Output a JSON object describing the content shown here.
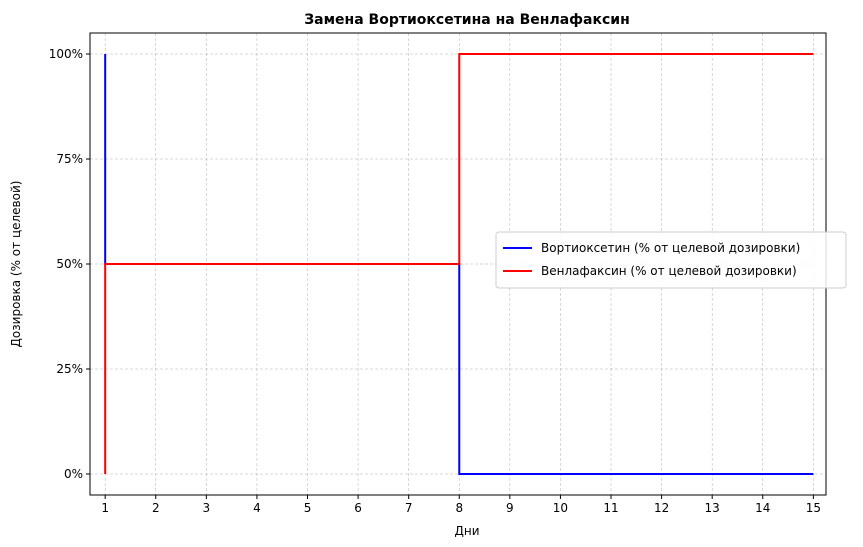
{
  "chart_data": {
    "type": "line",
    "title": "Замена Вортиоксетина на Венлафаксин",
    "xlabel": "Дни",
    "ylabel": "Дозировка (% от целевой)",
    "xlim": [
      0.7,
      15.25
    ],
    "ylim": [
      -5,
      105
    ],
    "x_ticks": [
      1,
      2,
      3,
      4,
      5,
      6,
      7,
      8,
      9,
      10,
      11,
      12,
      13,
      14,
      15
    ],
    "y_ticks": [
      0,
      25,
      50,
      75,
      100
    ],
    "y_tick_labels": [
      "0%",
      "25%",
      "50%",
      "75%",
      "100%"
    ],
    "grid": true,
    "legend_position": "center-right",
    "series": [
      {
        "name": "Вортиоксетин (% от целевой дозировки)",
        "color": "#0000ff",
        "points": [
          [
            1,
            100
          ],
          [
            1,
            50
          ],
          [
            8,
            50
          ],
          [
            8,
            0
          ],
          [
            15,
            0
          ]
        ]
      },
      {
        "name": "Венлафаксин (% от целевой дозировки)",
        "color": "#ff0000",
        "points": [
          [
            1,
            0
          ],
          [
            1,
            50
          ],
          [
            8,
            50
          ],
          [
            8,
            100
          ],
          [
            15,
            100
          ]
        ]
      }
    ]
  }
}
